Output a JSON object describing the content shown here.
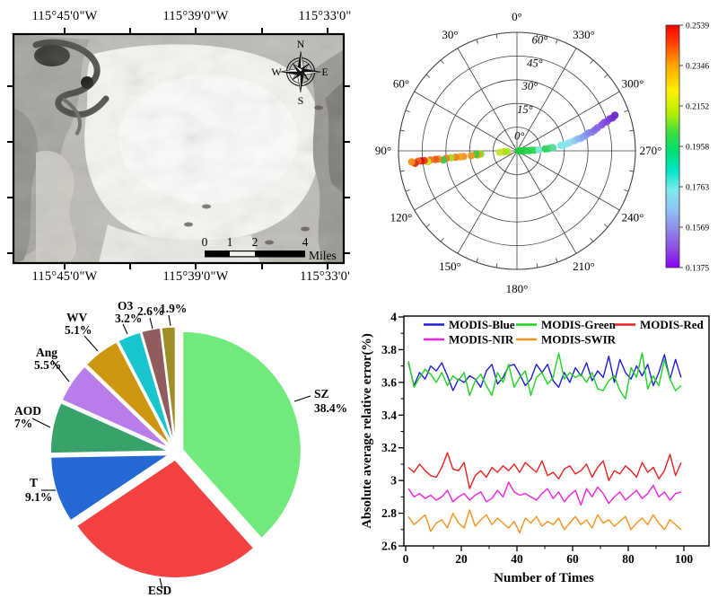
{
  "panels": {
    "map": {
      "top_labels": [
        "115°45'0\"W",
        "115°39'0\"W",
        "115°33'0\""
      ],
      "bottom_labels": [
        "115°45'0\"W",
        "115°39'0\"W",
        "115°33'0'"
      ],
      "compass": {
        "n": "N",
        "e": "E",
        "s": "S",
        "w": "W"
      },
      "scalebar": {
        "ticks": [
          "0",
          "1",
          "2",
          "4"
        ],
        "unit": "Miles"
      }
    }
  },
  "chart_data": [
    {
      "type": "scatter",
      "subtype": "polar",
      "azimuth_zero": "top",
      "azimuth_direction": "counterclockwise",
      "azimuth_angles": [
        0,
        30,
        60,
        90,
        120,
        150,
        180,
        210,
        240,
        270,
        300,
        330
      ],
      "azimuth_labels": [
        "0°",
        "30°",
        "60°",
        "90°",
        "120°",
        "150°",
        "180°",
        "210°",
        "240°",
        "270°",
        "300°",
        "330°"
      ],
      "rings_deg": [
        15,
        30,
        45,
        60,
        75
      ],
      "radial_ticks_deg": [
        0,
        15,
        30,
        45,
        60
      ],
      "radial_tick_labels": [
        "0°",
        "15°",
        "30°",
        "45°",
        "60°"
      ],
      "rmax_deg": 75,
      "colorbar": {
        "tick_labels": [
          "0.2539",
          "0.2346",
          "0.2152",
          "0.1958",
          "0.1763",
          "0.1569",
          "0.1375"
        ],
        "vmin": 0.1375,
        "vmax": 0.2539,
        "stops": [
          {
            "off": 0,
            "c": "#F50000"
          },
          {
            "off": 0.07,
            "c": "#FF3D00"
          },
          {
            "off": 0.16,
            "c": "#FFA000"
          },
          {
            "off": 0.27,
            "c": "#FFF000"
          },
          {
            "off": 0.36,
            "c": "#B8F000"
          },
          {
            "off": 0.45,
            "c": "#35DD45"
          },
          {
            "off": 0.52,
            "c": "#00DF70"
          },
          {
            "off": 0.6,
            "c": "#00E6C8"
          },
          {
            "off": 0.68,
            "c": "#7FE9EE"
          },
          {
            "off": 0.76,
            "c": "#8FC3F5"
          },
          {
            "off": 0.84,
            "c": "#8F8BE9"
          },
          {
            "off": 0.93,
            "c": "#8C45DF"
          },
          {
            "off": 1,
            "c": "#8A00F5"
          }
        ]
      },
      "points": [
        {
          "a": 270,
          "r": 1,
          "c": "#1ECC3A"
        },
        {
          "a": 270,
          "r": 3,
          "c": "#22CF3E"
        },
        {
          "a": 271,
          "r": 5,
          "c": "#1FCE45"
        },
        {
          "a": 271,
          "r": 7,
          "c": "#27D24A"
        },
        {
          "a": 272,
          "r": 9,
          "c": "#2BD153"
        },
        {
          "a": 272,
          "r": 11,
          "c": "#33D45E"
        },
        {
          "a": 273,
          "r": 14,
          "c": "#7FE8D8"
        },
        {
          "a": 274,
          "r": 18,
          "c": "#2FD159"
        },
        {
          "a": 274,
          "r": 20,
          "c": "#36D463"
        },
        {
          "a": 275,
          "r": 22,
          "c": "#3ED66E"
        },
        {
          "a": 275,
          "r": 23,
          "c": "#58DCA8"
        },
        {
          "a": 277,
          "r": 28,
          "c": "#7DE9E2"
        },
        {
          "a": 277,
          "r": 30,
          "c": "#82EAE8"
        },
        {
          "a": 278,
          "r": 32,
          "c": "#8BE6EE"
        },
        {
          "a": 279,
          "r": 34,
          "c": "#90DDF2"
        },
        {
          "a": 280,
          "r": 37,
          "c": "#92CDF4"
        },
        {
          "a": 281,
          "r": 39,
          "c": "#8FC0F2"
        },
        {
          "a": 281,
          "r": 41,
          "c": "#8BB2F0"
        },
        {
          "a": 282,
          "r": 43,
          "c": "#87A5EE"
        },
        {
          "a": 283,
          "r": 45,
          "c": "#8497EC"
        },
        {
          "a": 284,
          "r": 47,
          "c": "#8489EA"
        },
        {
          "a": 284,
          "r": 49,
          "c": "#857CE8"
        },
        {
          "a": 285,
          "r": 51,
          "c": "#8670E6"
        },
        {
          "a": 286,
          "r": 53,
          "c": "#8765E4"
        },
        {
          "a": 287,
          "r": 56,
          "c": "#8759E2"
        },
        {
          "a": 288,
          "r": 58,
          "c": "#8650DE"
        },
        {
          "a": 288,
          "r": 60,
          "c": "#8148DA"
        },
        {
          "a": 289,
          "r": 62,
          "c": "#7A3CD6"
        },
        {
          "a": 289,
          "r": 64,
          "c": "#7334D2"
        },
        {
          "a": 290,
          "r": 66,
          "c": "#6B28CE"
        },
        {
          "a": 95,
          "r": 6,
          "c": "#B9E428"
        },
        {
          "a": 94,
          "r": 8,
          "c": "#ABDC1F"
        },
        {
          "a": 95,
          "r": 11,
          "c": "#C4E62C"
        },
        {
          "a": 95,
          "r": 23,
          "c": "#93D424"
        },
        {
          "a": 96,
          "r": 25,
          "c": "#F2A01C"
        },
        {
          "a": 95,
          "r": 26,
          "c": "#3BCC3F"
        },
        {
          "a": 96,
          "r": 29,
          "c": "#F29420"
        },
        {
          "a": 96,
          "r": 34,
          "c": "#F28C26"
        },
        {
          "a": 96,
          "r": 36,
          "c": "#EDA51E"
        },
        {
          "a": 96,
          "r": 39,
          "c": "#F07D1C"
        },
        {
          "a": 96,
          "r": 42,
          "c": "#AFD626"
        },
        {
          "a": 96,
          "r": 45,
          "c": "#F27E22"
        },
        {
          "a": 97,
          "r": 47,
          "c": "#35C743"
        },
        {
          "a": 96,
          "r": 50,
          "c": "#F2831C"
        },
        {
          "a": 96,
          "r": 52,
          "c": "#EA5A1A"
        },
        {
          "a": 96,
          "r": 55,
          "c": "#F0761F"
        },
        {
          "a": 97,
          "r": 57,
          "c": "#CCE41E"
        },
        {
          "a": 96,
          "r": 59,
          "c": "#EA3A18"
        },
        {
          "a": 96,
          "r": 61,
          "c": "#DE1412"
        },
        {
          "a": 96,
          "r": 63,
          "c": "#F2641C"
        },
        {
          "a": 97,
          "r": 65,
          "c": "#E62C16"
        },
        {
          "a": 96,
          "r": 67,
          "c": "#F28E1A"
        }
      ]
    },
    {
      "type": "pie",
      "start_angle_deg": 0,
      "direction": "clockwise",
      "slices": [
        {
          "label": "SZ",
          "pct": 38.4,
          "pct_label": "38.4%",
          "color": "#6FEA7B"
        },
        {
          "label": "ESD",
          "pct": 27.2,
          "pct_label": "",
          "color": "#F34040"
        },
        {
          "label": "T",
          "pct": 9.1,
          "pct_label": "9.1%",
          "color": "#2568D3"
        },
        {
          "label": "AOD",
          "pct": 7.0,
          "pct_label": "7%",
          "color": "#38A26A"
        },
        {
          "label": "Ang",
          "pct": 5.5,
          "pct_label": "5.5%",
          "color": "#B97DE9"
        },
        {
          "label": "WV",
          "pct": 5.1,
          "pct_label": "5.1%",
          "color": "#CC960F"
        },
        {
          "label": "O3",
          "pct": 3.2,
          "pct_label": "3.2%",
          "color": "#18C5CC"
        },
        {
          "label": "",
          "pct": 2.6,
          "pct_label": "2.6%",
          "color": "#905C5C"
        },
        {
          "label": "",
          "pct": 1.9,
          "pct_label": "1.9%",
          "color": "#9E8F24"
        }
      ]
    },
    {
      "type": "line",
      "xlabel": "Number of Times",
      "ylabel": "Absolute average relative error(%)",
      "ylim": [
        2.6,
        4
      ],
      "xlim": [
        0,
        109
      ],
      "xtick_values": [
        0,
        20,
        40,
        60,
        80,
        100
      ],
      "xtick_labels": [
        "0",
        "20",
        "40",
        "60",
        "80",
        "100"
      ],
      "ytick_values": [
        2.6,
        2.8,
        3.0,
        3.2,
        3.4,
        3.6,
        3.8,
        4.0
      ],
      "ytick_labels": [
        "2.6",
        "2.8",
        "3",
        "3.2",
        "3.4",
        "3.6",
        "3.8",
        "4"
      ],
      "x_start": 1,
      "x_step": 2,
      "legend_rows": [
        [
          "MODIS-Blue",
          "MODIS-Green",
          "MODIS-Red"
        ],
        [
          "MODIS-NIR",
          "MODIS-SWIR"
        ]
      ],
      "series": [
        {
          "name": "MODIS-Blue",
          "color": "#1F1FD6",
          "values": [
            3.72,
            3.58,
            3.66,
            3.62,
            3.7,
            3.67,
            3.72,
            3.64,
            3.55,
            3.62,
            3.6,
            3.64,
            3.62,
            3.57,
            3.67,
            3.71,
            3.59,
            3.63,
            3.7,
            3.71,
            3.65,
            3.58,
            3.62,
            3.71,
            3.66,
            3.71,
            3.61,
            3.57,
            3.66,
            3.6,
            3.69,
            3.64,
            3.72,
            3.61,
            3.67,
            3.63,
            3.76,
            3.6,
            3.74,
            3.66,
            3.62,
            3.7,
            3.64,
            3.71,
            3.58,
            3.66,
            3.77,
            3.62,
            3.74,
            3.63
          ]
        },
        {
          "name": "MODIS-Green",
          "color": "#1FD31F",
          "values": [
            3.73,
            3.57,
            3.63,
            3.68,
            3.65,
            3.6,
            3.66,
            3.58,
            3.64,
            3.61,
            3.66,
            3.52,
            3.61,
            3.65,
            3.58,
            3.52,
            3.66,
            3.6,
            3.71,
            3.57,
            3.63,
            3.67,
            3.52,
            3.63,
            3.66,
            3.59,
            3.63,
            3.78,
            3.62,
            3.66,
            3.63,
            3.65,
            3.6,
            3.66,
            3.56,
            3.55,
            3.61,
            3.64,
            3.55,
            3.5,
            3.69,
            3.63,
            3.78,
            3.56,
            3.64,
            3.58,
            3.74,
            3.62,
            3.55,
            3.58
          ]
        },
        {
          "name": "MODIS-Red",
          "color": "#E82121",
          "values": [
            3.08,
            3.05,
            3.1,
            3.06,
            3.03,
            3.02,
            3.08,
            3.17,
            3.07,
            3.06,
            3.11,
            2.95,
            3.03,
            3.06,
            3.02,
            3.08,
            3.05,
            3.09,
            3.06,
            3.1,
            3.05,
            3.11,
            3.08,
            3.05,
            3.12,
            3.03,
            3.05,
            3.01,
            3.07,
            3.09,
            3.04,
            3.06,
            3.1,
            3.02,
            3.08,
            3.12,
            3.0,
            3.06,
            3.04,
            3.09,
            3.06,
            3.02,
            3.11,
            3.05,
            3.08,
            3.01,
            3.06,
            3.16,
            3.03,
            3.11
          ]
        },
        {
          "name": "MODIS-NIR",
          "color": "#F021E0",
          "values": [
            2.95,
            2.9,
            2.92,
            2.89,
            2.91,
            2.88,
            2.9,
            2.94,
            2.87,
            2.9,
            2.92,
            2.88,
            2.91,
            2.93,
            2.87,
            2.89,
            2.94,
            2.9,
            2.99,
            2.93,
            2.91,
            2.92,
            2.9,
            2.88,
            2.92,
            2.95,
            2.89,
            2.93,
            2.87,
            2.91,
            2.94,
            2.85,
            2.95,
            2.9,
            2.96,
            2.92,
            2.86,
            2.9,
            2.93,
            2.88,
            2.91,
            2.94,
            2.89,
            2.92,
            2.97,
            2.9,
            2.93,
            2.88,
            2.92,
            2.93
          ]
        },
        {
          "name": "MODIS-SWIR",
          "color": "#F5921E",
          "values": [
            2.78,
            2.73,
            2.76,
            2.79,
            2.69,
            2.74,
            2.76,
            2.71,
            2.8,
            2.74,
            2.71,
            2.82,
            2.72,
            2.76,
            2.79,
            2.73,
            2.77,
            2.74,
            2.71,
            2.75,
            2.68,
            2.77,
            2.74,
            2.78,
            2.72,
            2.75,
            2.73,
            2.77,
            2.7,
            2.74,
            2.78,
            2.73,
            2.76,
            2.71,
            2.79,
            2.74,
            2.76,
            2.72,
            2.75,
            2.78,
            2.7,
            2.74,
            2.77,
            2.73,
            2.79,
            2.74,
            2.7,
            2.76,
            2.73,
            2.7
          ]
        }
      ]
    }
  ]
}
